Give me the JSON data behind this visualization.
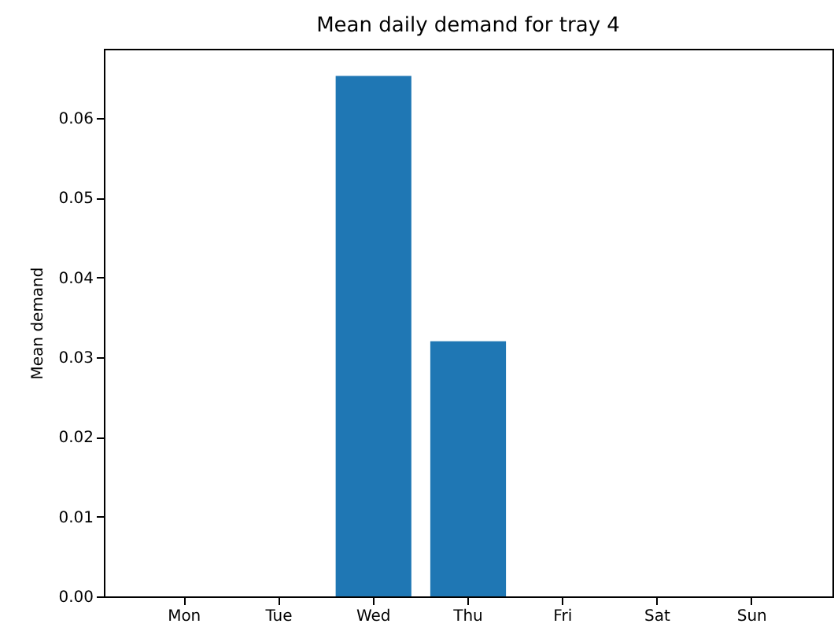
{
  "chart_data": {
    "type": "bar",
    "title": "Mean daily demand for tray 4",
    "ylabel": "Mean demand",
    "categories": [
      "Mon",
      "Tue",
      "Wed",
      "Thu",
      "Fri",
      "Sat",
      "Sun"
    ],
    "values": [
      0,
      0,
      0.0653,
      0.032,
      0,
      0,
      0
    ],
    "color": "#1f77b4",
    "ylim": [
      0,
      0.0687
    ],
    "yticks": [
      {
        "value": 0,
        "label": "0.00"
      },
      {
        "value": 0.01,
        "label": "0.01"
      },
      {
        "value": 0.02,
        "label": "0.02"
      },
      {
        "value": 0.03,
        "label": "0.03"
      },
      {
        "value": 0.04,
        "label": "0.04"
      },
      {
        "value": 0.05,
        "label": "0.05"
      },
      {
        "value": 0.06,
        "label": "0.06"
      }
    ],
    "grid": false
  }
}
